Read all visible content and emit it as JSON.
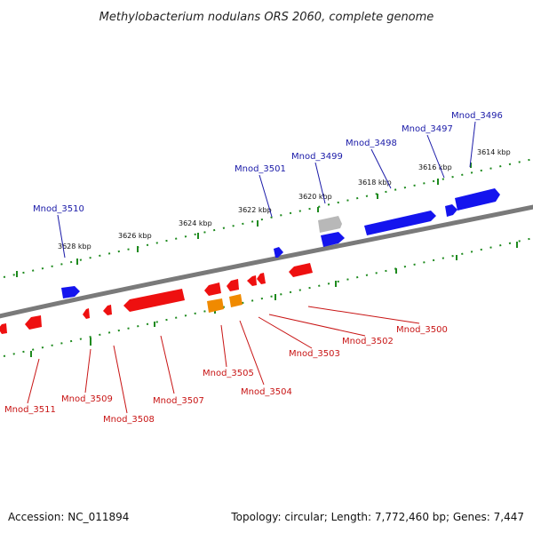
{
  "title": "Methylobacterium nodulans ORS 2060, complete genome",
  "footer": {
    "accession": "Accession: NC_011894",
    "summary": "Topology: circular; Length: 7,772,460 bp; Genes: 7,447"
  },
  "colors": {
    "forward_gene": "#1414ee",
    "reverse_gene": "#ee1010",
    "reverse_gene_alt": "#f08a00",
    "unknown_gene": "#b8b8b8",
    "backbone": "#7a7a7a",
    "ticks": "#1e8a1e",
    "label_blue": "#1a1aa8",
    "label_red": "#c81414"
  },
  "scale_labels": [
    "3614 kbp",
    "3616 kbp",
    "3618 kbp",
    "3620 kbp",
    "3622 kbp",
    "3624 kbp",
    "3626 kbp",
    "3628 kbp"
  ],
  "genes_forward": [
    "Mnod_3496",
    "Mnod_3497",
    "Mnod_3498",
    "Mnod_3499",
    "Mnod_3501",
    "Mnod_3510"
  ],
  "genes_reverse": [
    "Mnod_3500",
    "Mnod_3502",
    "Mnod_3503",
    "Mnod_3504",
    "Mnod_3505",
    "Mnod_3507",
    "Mnod_3508",
    "Mnod_3509",
    "Mnod_3511"
  ]
}
